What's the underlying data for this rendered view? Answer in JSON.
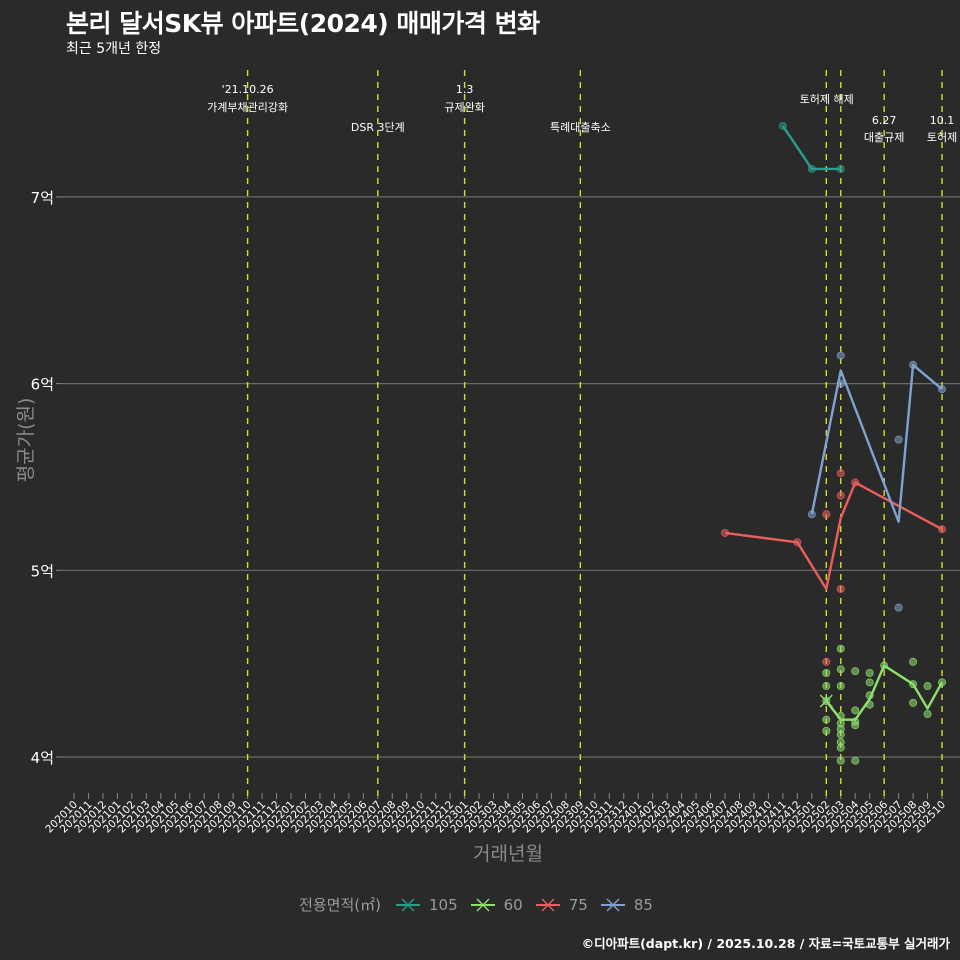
{
  "header": {
    "title": "본리 달서SK뷰 아파트(2024) 매매가격 변화",
    "subtitle": "최근 5개년 한정"
  },
  "caption": "©디아파트(dapt.kr) / 2025.10.28 / 자료=국토교통부 실거래가",
  "chart_data": {
    "type": "line",
    "title": "본리 달서SK뷰 아파트(2024) 매매가격 변화",
    "subtitle": "최근 5개년 한정",
    "xlabel": "거래년월",
    "ylabel": "평균가(원)",
    "ylim": [
      3.8,
      7.8
    ],
    "y_ticks": [
      {
        "value": 4,
        "label": "4억"
      },
      {
        "value": 5,
        "label": "5억"
      },
      {
        "value": 6,
        "label": "6억"
      },
      {
        "value": 7,
        "label": "7억"
      }
    ],
    "x_categories": [
      "202010",
      "202011",
      "202012",
      "202101",
      "202102",
      "202103",
      "202104",
      "202105",
      "202106",
      "202107",
      "202108",
      "202109",
      "202110",
      "202111",
      "202112",
      "202201",
      "202202",
      "202203",
      "202204",
      "202205",
      "202206",
      "202207",
      "202208",
      "202209",
      "202210",
      "202211",
      "202212",
      "202301",
      "202302",
      "202303",
      "202304",
      "202305",
      "202306",
      "202307",
      "202308",
      "202309",
      "202310",
      "202311",
      "202312",
      "202401",
      "202402",
      "202403",
      "202404",
      "202405",
      "202406",
      "202407",
      "202408",
      "202409",
      "202410",
      "202411",
      "202412",
      "202501",
      "202502",
      "202503",
      "202504",
      "202505",
      "202506",
      "202507",
      "202508",
      "202509",
      "202510"
    ],
    "grid": true,
    "legend": {
      "title": "전용면적(㎡)",
      "position": "bottom"
    },
    "series": [
      {
        "name": "105",
        "color": "#2a9d8f",
        "line": [
          [
            "202411",
            7.38
          ],
          [
            "202501",
            7.15
          ],
          [
            "202503",
            7.15
          ]
        ],
        "points": [
          [
            "202411",
            7.38
          ],
          [
            "202501",
            7.15
          ],
          [
            "202503",
            7.15
          ]
        ]
      },
      {
        "name": "60",
        "color": "#8ee06e",
        "line": [
          [
            "202502",
            4.3
          ],
          [
            "202503",
            4.2
          ],
          [
            "202504",
            4.2
          ],
          [
            "202505",
            4.31
          ],
          [
            "202506",
            4.49
          ],
          [
            "202508",
            4.39
          ],
          [
            "202509",
            4.26
          ],
          [
            "202510",
            4.4
          ]
        ],
        "points": [
          [
            "202502",
            4.45
          ],
          [
            "202502",
            4.38
          ],
          [
            "202502",
            4.3
          ],
          [
            "202502",
            4.2
          ],
          [
            "202502",
            4.14
          ],
          [
            "202503",
            4.58
          ],
          [
            "202503",
            4.47
          ],
          [
            "202503",
            4.38
          ],
          [
            "202503",
            4.22
          ],
          [
            "202503",
            4.18
          ],
          [
            "202503",
            4.15
          ],
          [
            "202503",
            4.12
          ],
          [
            "202503",
            4.08
          ],
          [
            "202503",
            4.05
          ],
          [
            "202503",
            3.98
          ],
          [
            "202504",
            4.46
          ],
          [
            "202504",
            4.25
          ],
          [
            "202504",
            4.19
          ],
          [
            "202504",
            4.17
          ],
          [
            "202504",
            3.98
          ],
          [
            "202505",
            4.45
          ],
          [
            "202505",
            4.4
          ],
          [
            "202505",
            4.33
          ],
          [
            "202505",
            4.28
          ],
          [
            "202506",
            4.49
          ],
          [
            "202508",
            4.51
          ],
          [
            "202508",
            4.39
          ],
          [
            "202508",
            4.29
          ],
          [
            "202509",
            4.38
          ],
          [
            "202509",
            4.23
          ],
          [
            "202510",
            4.4
          ]
        ]
      },
      {
        "name": "75",
        "color": "#e85f5c",
        "line": [
          [
            "202407",
            5.2
          ],
          [
            "202412",
            5.15
          ],
          [
            "202502",
            4.9
          ],
          [
            "202503",
            5.28
          ],
          [
            "202504",
            5.47
          ],
          [
            "202510",
            5.22
          ]
        ],
        "points": [
          [
            "202407",
            5.2
          ],
          [
            "202412",
            5.15
          ],
          [
            "202502",
            5.3
          ],
          [
            "202502",
            4.51
          ],
          [
            "202503",
            5.52
          ],
          [
            "202503",
            5.4
          ],
          [
            "202503",
            4.9
          ],
          [
            "202504",
            5.47
          ],
          [
            "202510",
            5.22
          ]
        ]
      },
      {
        "name": "85",
        "color": "#7fa3d1",
        "line": [
          [
            "202501",
            5.3
          ],
          [
            "202503",
            6.07
          ],
          [
            "202507",
            5.26
          ],
          [
            "202508",
            6.1
          ],
          [
            "202510",
            5.97
          ]
        ],
        "points": [
          [
            "202501",
            5.3
          ],
          [
            "202503",
            6.15
          ],
          [
            "202503",
            6.0
          ],
          [
            "202507",
            5.7
          ],
          [
            "202507",
            4.8
          ],
          [
            "202508",
            6.1
          ],
          [
            "202510",
            5.97
          ]
        ]
      }
    ],
    "annotations": [
      {
        "x": "202110",
        "lines": [
          "'21.10.26",
          "가계부채관리강화"
        ],
        "row": 0
      },
      {
        "x": "202207",
        "lines": [
          "DSR 3단계"
        ],
        "row": 2
      },
      {
        "x": "202301",
        "lines": [
          "1.3",
          "규제완화"
        ],
        "row": 0
      },
      {
        "x": "202309",
        "lines": [
          "특례대출축소"
        ],
        "row": 2
      },
      {
        "x": "202502",
        "lines": [],
        "row": 0
      },
      {
        "x": "202503",
        "lines": [
          "토허제 해제"
        ],
        "row": 1,
        "dx": -14
      },
      {
        "x": "202506",
        "lines": [
          "6.27",
          "대출규제"
        ],
        "row": 3
      },
      {
        "x": "202510",
        "lines": [
          "10.1",
          "토허제"
        ],
        "row": 3
      }
    ]
  }
}
